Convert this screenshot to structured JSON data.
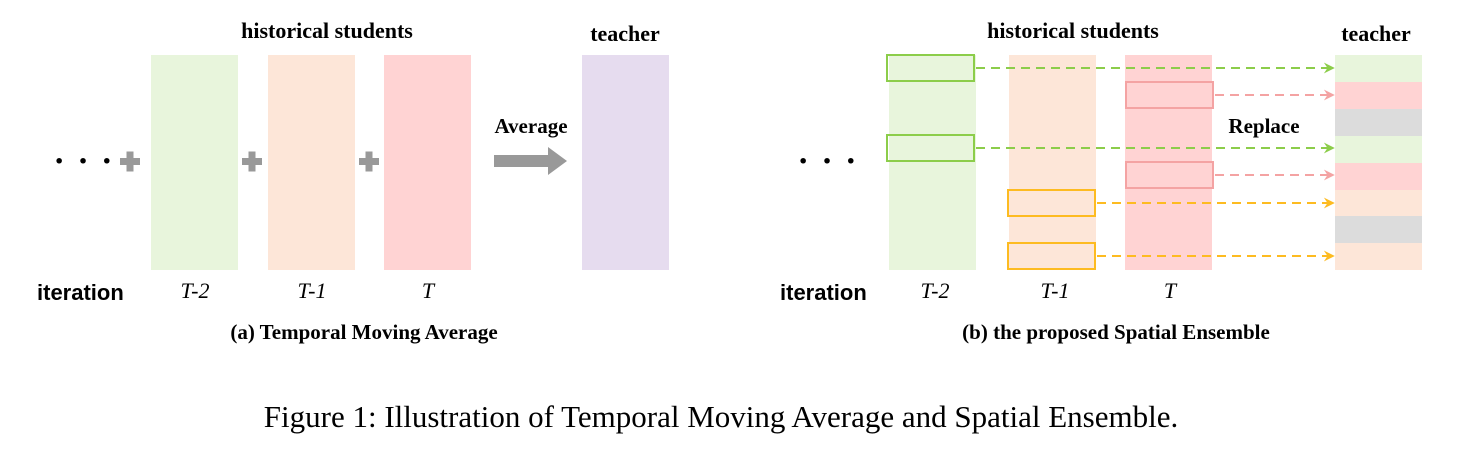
{
  "panel_a": {
    "heading_students": "historical students",
    "heading_teacher": "teacher",
    "ellipsis": "· · ·",
    "average_label": "Average",
    "iteration_label": "iteration",
    "iterations": [
      "T-2",
      "T-1",
      "T"
    ],
    "caption": "(a) Temporal Moving Average"
  },
  "panel_b": {
    "heading_students": "historical students",
    "heading_teacher": "teacher",
    "ellipsis": "· · ·",
    "replace_label": "Replace",
    "iteration_label": "iteration",
    "iterations": [
      "T-2",
      "T-1",
      "T"
    ],
    "caption": "(b) the proposed Spatial Ensemble"
  },
  "figure_caption": "Figure 1: Illustration of Temporal Moving Average and Spatial Ensemble.",
  "colors": {
    "green_fill": "#e8f5dc",
    "orange_fill": "#fde6d8",
    "red_fill": "#ffd3d3",
    "purple_fill": "#e6dcef",
    "gray_fill": "#dcdcdc",
    "plus_gray": "#999999",
    "arrow_gray": "#999999",
    "green_stroke": "#8ccd4a",
    "red_stroke": "#f4a3a3",
    "yellow_stroke": "#fdbb21"
  }
}
